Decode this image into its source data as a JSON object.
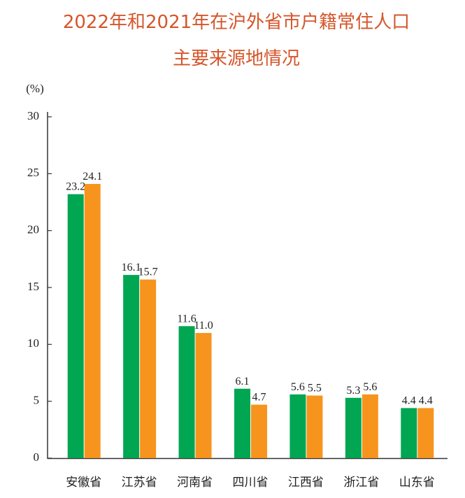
{
  "chart_data": {
    "type": "bar",
    "title": [
      "2022年和2021年在沪外省市户籍常住人口",
      "主要来源地情况"
    ],
    "y_label": "(%)",
    "categories": [
      "安徽省",
      "江苏省",
      "河南省",
      "四川省",
      "江西省",
      "浙江省",
      "山东省"
    ],
    "series": [
      {
        "color": "#00a651",
        "values": [
          23.2,
          16.1,
          11.6,
          6.1,
          5.6,
          5.3,
          4.4
        ],
        "value_labels": [
          "23.2",
          "16.1",
          "11.6",
          "6.1",
          "5.6",
          "5.3",
          "4.4"
        ]
      },
      {
        "color": "#f7941d",
        "values": [
          24.1,
          15.7,
          11.0,
          4.7,
          5.5,
          5.6,
          4.4
        ],
        "value_labels": [
          "24.1",
          "15.7",
          "11.0",
          "4.7",
          "5.5",
          "5.6",
          "4.4"
        ]
      }
    ],
    "ylim": [
      0,
      30
    ],
    "yticks": [
      0,
      5,
      10,
      15,
      20,
      25,
      30
    ]
  }
}
